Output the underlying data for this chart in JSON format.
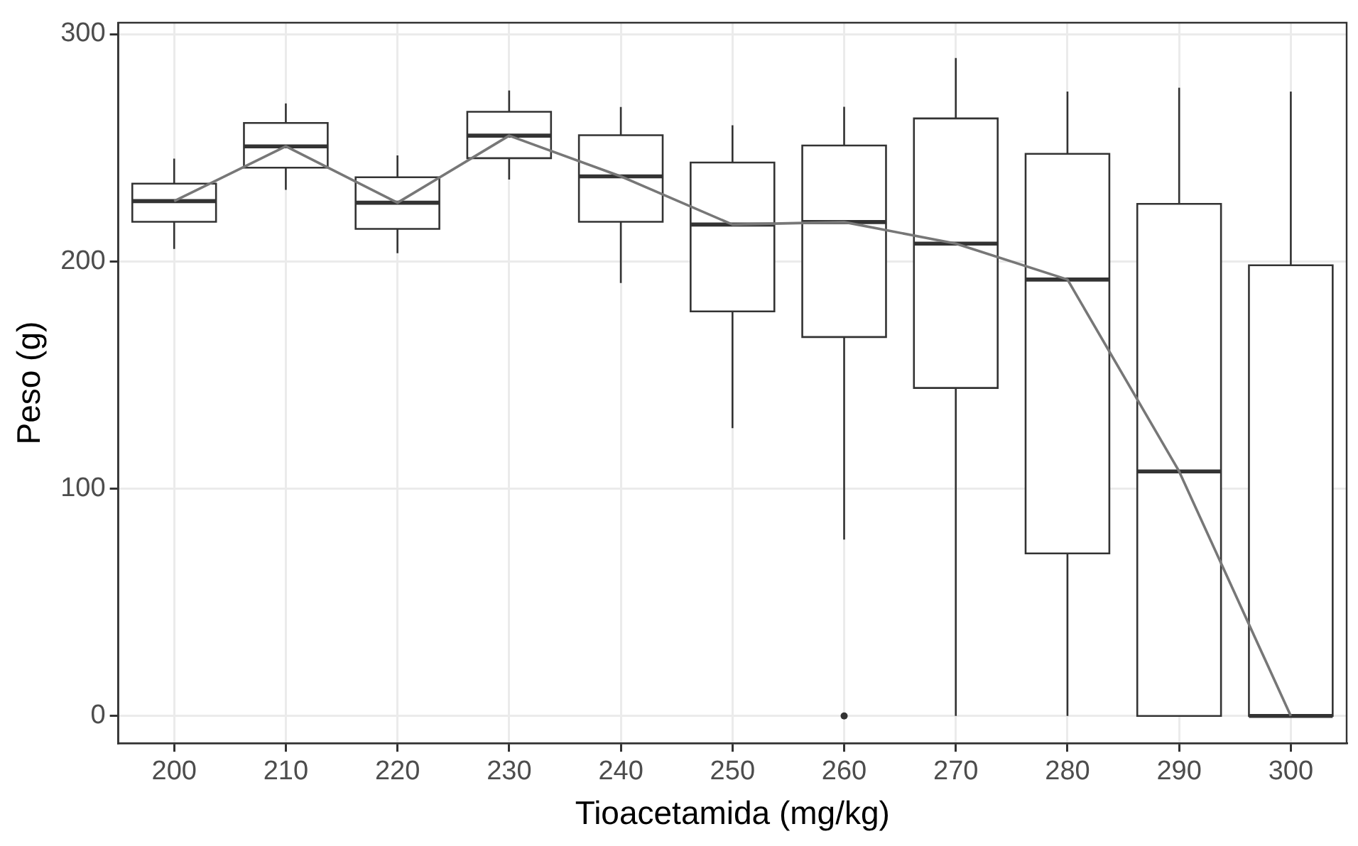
{
  "chart_data": {
    "type": "box",
    "xlabel": "Tioacetamida (mg/kg)",
    "ylabel": "Peso (g)",
    "categories": [
      "200",
      "210",
      "220",
      "230",
      "240",
      "250",
      "260",
      "270",
      "280",
      "290",
      "300"
    ],
    "boxes": [
      {
        "low": 205.5,
        "q1": 217.4,
        "median": 226.5,
        "q3": 234.2,
        "high": 245.2
      },
      {
        "low": 231.5,
        "q1": 241.2,
        "median": 250.6,
        "q3": 260.9,
        "high": 269.5
      },
      {
        "low": 203.6,
        "q1": 214.3,
        "median": 225.8,
        "q3": 237,
        "high": 246.6
      },
      {
        "low": 236,
        "q1": 245.4,
        "median": 255.3,
        "q3": 265.8,
        "high": 275.2
      },
      {
        "low": 190.5,
        "q1": 217.4,
        "median": 237.4,
        "q3": 255.5,
        "high": 267.9
      },
      {
        "low": 126.6,
        "q1": 178,
        "median": 216.2,
        "q3": 243.5,
        "high": 259.9
      },
      {
        "low": 77.6,
        "q1": 166.7,
        "median": 217.3,
        "q3": 251,
        "high": 268,
        "outliers": [
          0
        ]
      },
      {
        "low": 0,
        "q1": 144.3,
        "median": 207.8,
        "q3": 262.9,
        "high": 289.5
      },
      {
        "low": 0,
        "q1": 71.5,
        "median": 192,
        "q3": 247.3,
        "high": 274.7
      },
      {
        "low": 0,
        "q1": 0,
        "median": 107.6,
        "q3": 225.3,
        "high": 276.4
      },
      {
        "low": 0,
        "q1": 0,
        "median": 0,
        "q3": 198.3,
        "high": 274.7
      }
    ],
    "color": "#333333",
    "series": [
      {
        "type": "line",
        "color": "#777777",
        "values": [
          226.5,
          250.6,
          225.8,
          255.3,
          237.4,
          216.2,
          217.3,
          207.8,
          192,
          107.6,
          0
        ]
      }
    ],
    "ylim": [
      -12,
      305
    ],
    "yticks": [
      0,
      100,
      200,
      300
    ],
    "grid": true,
    "marker": "none"
  }
}
